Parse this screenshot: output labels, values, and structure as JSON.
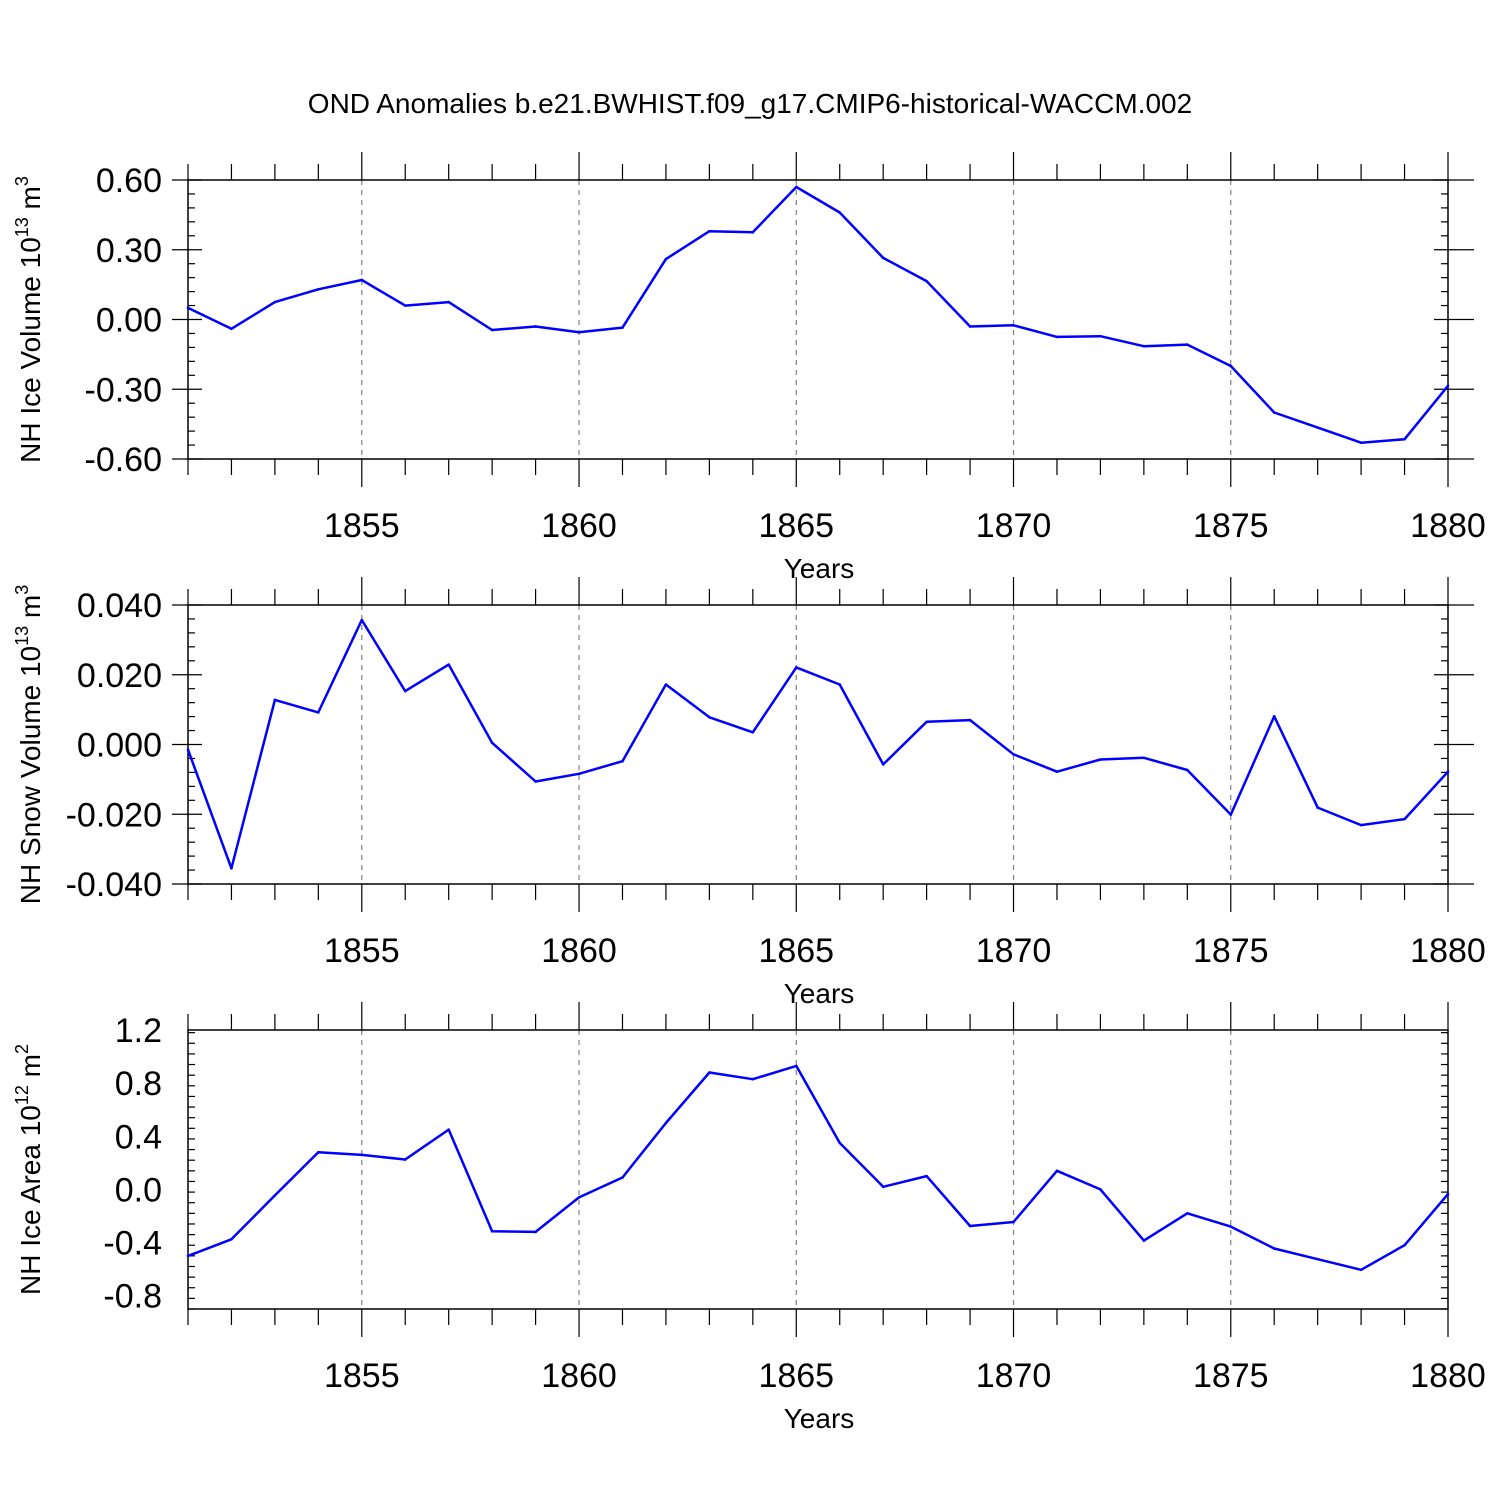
{
  "title": "OND Anomalies b.e21.BWHIST.f09_g17.CMIP6-historical-WACCM.002",
  "line_color": "#0000ff",
  "chart_data": [
    {
      "type": "line",
      "name": "ice-volume",
      "xlabel": "Years",
      "ylabel_text": "NH Ice Volume 10",
      "ylabel_exp": "13",
      "ylabel_unit": " m",
      "ylabel_unit_exp": "3",
      "xlim": [
        1851,
        1880
      ],
      "ylim": [
        -0.6,
        0.6
      ],
      "xticks": [
        1855,
        1860,
        1865,
        1870,
        1875,
        1880
      ],
      "yticks": [
        0.6,
        0.3,
        0.0,
        -0.3,
        -0.6
      ],
      "ytick_labels": [
        "0.60",
        "0.30",
        "0.00",
        "-0.30",
        "-0.60"
      ],
      "x": [
        1851,
        1852,
        1853,
        1854,
        1855,
        1856,
        1857,
        1858,
        1859,
        1860,
        1861,
        1862,
        1863,
        1864,
        1865,
        1866,
        1867,
        1868,
        1869,
        1870,
        1871,
        1872,
        1873,
        1874,
        1875,
        1876,
        1877,
        1878,
        1879,
        1880
      ],
      "values": [
        0.05,
        -0.04,
        0.075,
        0.13,
        0.17,
        0.06,
        0.075,
        -0.045,
        -0.03,
        -0.055,
        -0.035,
        0.26,
        0.38,
        0.375,
        0.57,
        0.46,
        0.265,
        0.165,
        -0.03,
        -0.025,
        -0.075,
        -0.072,
        -0.115,
        -0.108,
        -0.2,
        -0.4,
        -0.465,
        -0.53,
        -0.515,
        -0.285
      ]
    },
    {
      "type": "line",
      "name": "snow-volume",
      "xlabel": "Years",
      "ylabel_text": "NH Snow Volume 10",
      "ylabel_exp": "13",
      "ylabel_unit": " m",
      "ylabel_unit_exp": "3",
      "xlim": [
        1851,
        1880
      ],
      "ylim": [
        -0.04,
        0.04
      ],
      "xticks": [
        1855,
        1860,
        1865,
        1870,
        1875,
        1880
      ],
      "yticks": [
        0.04,
        0.02,
        0.0,
        -0.02,
        -0.04
      ],
      "ytick_labels": [
        "0.040",
        "0.020",
        "0.000",
        "-0.020",
        "-0.040"
      ],
      "x": [
        1851,
        1852,
        1853,
        1854,
        1855,
        1856,
        1857,
        1858,
        1859,
        1860,
        1861,
        1862,
        1863,
        1864,
        1865,
        1866,
        1867,
        1868,
        1869,
        1870,
        1871,
        1872,
        1873,
        1874,
        1875,
        1876,
        1877,
        1878,
        1879,
        1880
      ],
      "values": [
        -0.0015,
        -0.0355,
        0.0128,
        0.0092,
        0.0357,
        0.0153,
        0.0229,
        0.0005,
        -0.0106,
        -0.0084,
        -0.0048,
        0.0172,
        0.0078,
        0.0035,
        0.0221,
        0.0172,
        -0.0057,
        0.0065,
        0.007,
        -0.0028,
        -0.0078,
        -0.0043,
        -0.0038,
        -0.0073,
        -0.0201,
        0.0081,
        -0.0181,
        -0.0231,
        -0.0214,
        -0.0078
      ]
    },
    {
      "type": "line",
      "name": "ice-area",
      "xlabel": "Years",
      "ylabel_text": "NH Ice Area 10",
      "ylabel_exp": "12",
      "ylabel_unit": " m",
      "ylabel_unit_exp": "2",
      "xlim": [
        1851,
        1880
      ],
      "ylim": [
        -0.9,
        1.2
      ],
      "xticks": [
        1855,
        1860,
        1865,
        1870,
        1875,
        1880
      ],
      "yticks": [
        1.2,
        0.8,
        0.4,
        0.0,
        -0.4,
        -0.8
      ],
      "ytick_labels": [
        "1.2",
        "0.8",
        "0.4",
        "0.0",
        "-0.4",
        "-0.8"
      ],
      "x": [
        1851,
        1852,
        1853,
        1854,
        1855,
        1856,
        1857,
        1858,
        1859,
        1860,
        1861,
        1862,
        1863,
        1864,
        1865,
        1866,
        1867,
        1868,
        1869,
        1870,
        1871,
        1872,
        1873,
        1874,
        1875,
        1876,
        1877,
        1878,
        1879,
        1880
      ],
      "values": [
        -0.5,
        -0.375,
        -0.045,
        0.28,
        0.26,
        0.225,
        0.45,
        -0.315,
        -0.32,
        -0.06,
        0.09,
        0.5,
        0.88,
        0.83,
        0.93,
        0.35,
        0.02,
        0.1,
        -0.275,
        -0.245,
        0.14,
        0.0,
        -0.385,
        -0.18,
        -0.28,
        -0.445,
        -0.525,
        -0.605,
        -0.42,
        -0.035
      ]
    }
  ]
}
